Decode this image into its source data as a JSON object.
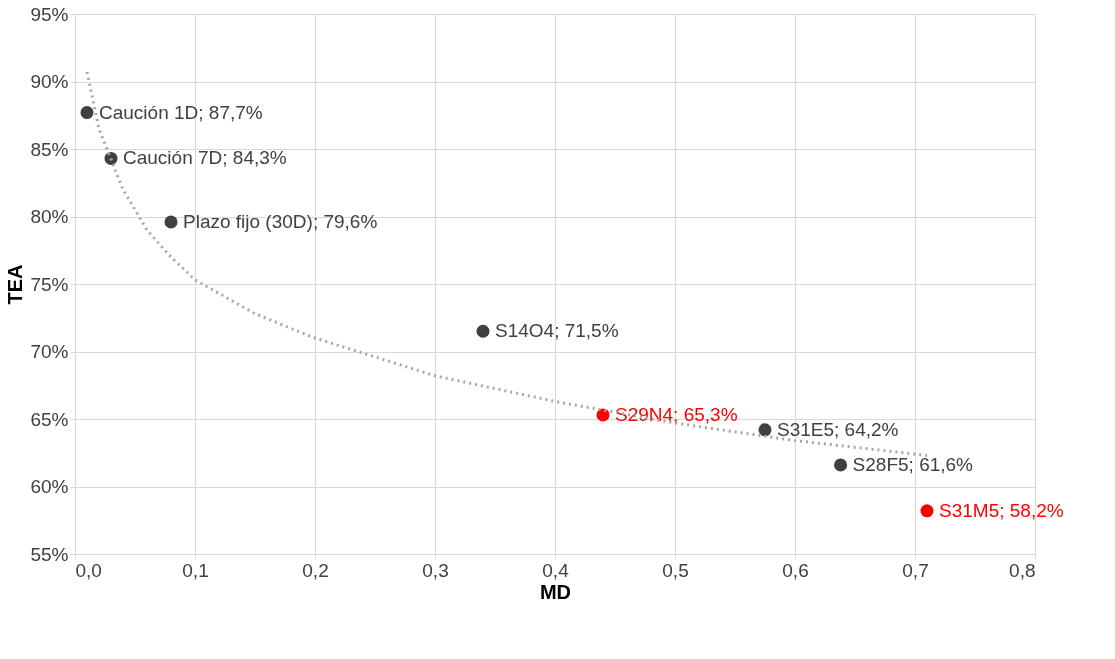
{
  "chart_data": {
    "type": "scatter",
    "xlabel": "MD",
    "ylabel": "TEA",
    "xlim": [
      0,
      0.8
    ],
    "ylim": [
      55,
      95
    ],
    "xticks": [
      {
        "value": 0,
        "label": "0,0"
      },
      {
        "value": 0.1,
        "label": "0,1"
      },
      {
        "value": 0.2,
        "label": "0,2"
      },
      {
        "value": 0.3,
        "label": "0,3"
      },
      {
        "value": 0.4,
        "label": "0,4"
      },
      {
        "value": 0.5,
        "label": "0,5"
      },
      {
        "value": 0.6,
        "label": "0,6"
      },
      {
        "value": 0.7,
        "label": "0,7"
      },
      {
        "value": 0.8,
        "label": "0,8"
      }
    ],
    "yticks": [
      {
        "value": 55,
        "label": "55%"
      },
      {
        "value": 60,
        "label": "60%"
      },
      {
        "value": 65,
        "label": "65%"
      },
      {
        "value": 70,
        "label": "70%"
      },
      {
        "value": 75,
        "label": "75%"
      },
      {
        "value": 80,
        "label": "80%"
      },
      {
        "value": 85,
        "label": "85%"
      },
      {
        "value": 90,
        "label": "90%"
      },
      {
        "value": 95,
        "label": "95%"
      }
    ],
    "grid": true,
    "series": [
      {
        "marker": "circle",
        "x": [
          0.01,
          0.03,
          0.08,
          0.34,
          0.44,
          0.575,
          0.638,
          0.71
        ],
        "values": [
          87.7,
          84.3,
          79.6,
          71.5,
          65.3,
          64.2,
          61.6,
          58.2
        ],
        "colors": [
          "#404040",
          "#404040",
          "#404040",
          "#404040",
          "#ff0000",
          "#404040",
          "#404040",
          "#ff0000"
        ],
        "value_labels": [
          "Caución 1D; 87,7%",
          "Caución 7D; 84,3%",
          "Plazo fijo (30D); 79,6%",
          "S14O4; 71,5%",
          "S29N4; 65,3%",
          "S31E5; 64,2%",
          "S28F5; 61,6%",
          "S31M5; 58,2%"
        ]
      },
      {
        "type": "line",
        "color": "#a6a6a6",
        "line_style": "dotted",
        "marker": "none",
        "x": [
          0.01,
          0.02,
          0.04,
          0.06,
          0.08,
          0.1,
          0.15,
          0.2,
          0.3,
          0.4,
          0.5,
          0.6,
          0.71
        ],
        "values": [
          90.7,
          86.5,
          82,
          79,
          77,
          75.3,
          72.8,
          71,
          68.2,
          66.3,
          64.7,
          63.4,
          62.3
        ]
      }
    ]
  }
}
